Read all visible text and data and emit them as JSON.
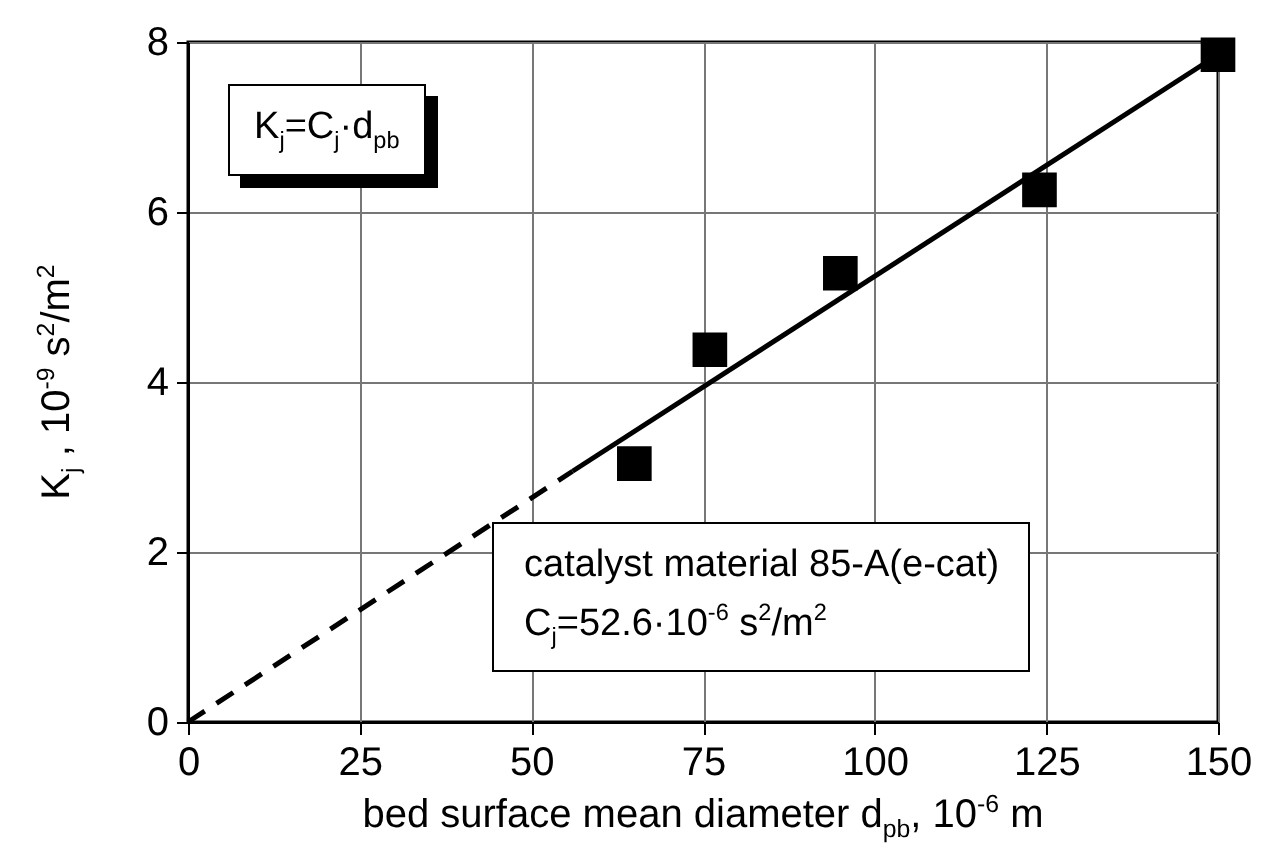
{
  "chart_data": {
    "type": "scatter",
    "xlabel": "bed surface mean diameter d$_{pb}$, 10$^{-6}$ m",
    "ylabel": "K$_{j}$ ,  10$^{-9}$ s$^{2}$/m$^{2}$",
    "annotations": [
      "K$_{j}$=C$_{j}$·d$_{pb}$",
      "catalyst material 85-A(e-cat)",
      "C$_{j}$=52.6·10$^{-6}$ s$^{2}$/m$^{2}$"
    ],
    "xlim": [
      0,
      150
    ],
    "xticks": [
      0,
      25,
      50,
      75,
      100,
      125,
      150
    ],
    "ylim": [
      0,
      8
    ],
    "yticks": [
      0,
      2,
      4,
      6,
      8
    ],
    "grid": true,
    "marker": "square",
    "series": [
      {
        "color": "#000000",
        "x": [
          65,
          76,
          95,
          124,
          150
        ],
        "values": [
          3.04,
          4.38,
          5.28,
          6.26,
          7.85
        ]
      },
      {
        "type": "line",
        "color": "#000000",
        "line_style": "dashed",
        "marker": "none",
        "x": [
          0,
          56
        ],
        "values": [
          0,
          2.95
        ]
      },
      {
        "type": "line",
        "color": "#000000",
        "line_style": "solid",
        "marker": "none",
        "x": [
          56,
          150
        ],
        "values": [
          2.95,
          7.85
        ]
      }
    ]
  }
}
